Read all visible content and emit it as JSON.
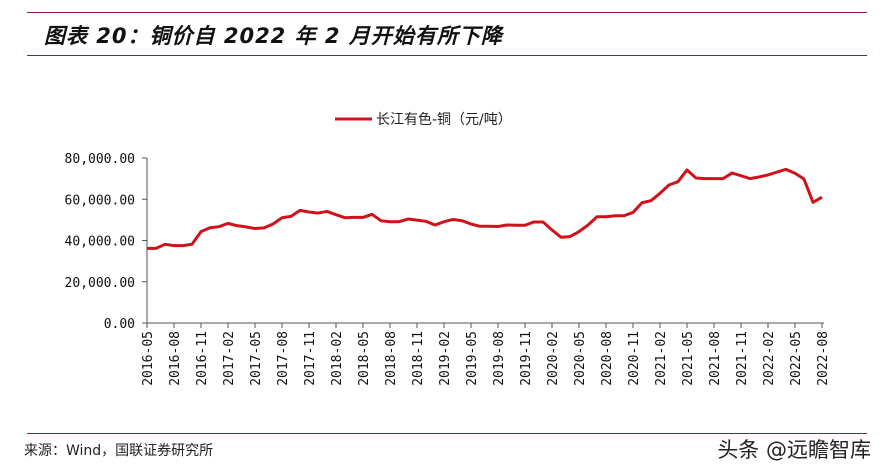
{
  "title": "图表 20：铜价自 2022 年 2 月开始有所下降",
  "source": "来源：Wind，国联证券研究所",
  "watermark": "头条 @远瞻智库",
  "chart_data": {
    "type": "line",
    "title": "",
    "xlabel": "",
    "ylabel": "",
    "ylim": [
      0,
      80000
    ],
    "yticks": [
      "0.00",
      "20,000.00",
      "40,000.00",
      "60,000.00",
      "80,000.00"
    ],
    "ytick_values": [
      0,
      20000,
      40000,
      60000,
      80000
    ],
    "grid": false,
    "legend_position": "top-right",
    "xtick_labels": [
      "2016-05",
      "2016-08",
      "2016-11",
      "2017-02",
      "2017-05",
      "2017-08",
      "2017-11",
      "2018-02",
      "2018-05",
      "2018-08",
      "2018-11",
      "2019-02",
      "2019-05",
      "2019-08",
      "2019-11",
      "2020-02",
      "2020-05",
      "2020-08",
      "2020-11",
      "2021-02",
      "2021-05",
      "2021-08",
      "2021-11",
      "2022-02",
      "2022-05",
      "2022-08"
    ],
    "x_start": "2016-05",
    "series": [
      {
        "name": "长江有色-铜（元/吨）",
        "color": "#d0121b",
        "values": [
          36200,
          36200,
          38150,
          37500,
          37500,
          38200,
          44300,
          46200,
          46700,
          48300,
          47200,
          46600,
          45800,
          46100,
          48000,
          51050,
          51700,
          54600,
          53800,
          53300,
          54100,
          52500,
          51050,
          51200,
          51200,
          52700,
          49600,
          49100,
          49100,
          50400,
          49900,
          49300,
          47500,
          49100,
          50200,
          49600,
          48000,
          46900,
          46900,
          46800,
          47500,
          47400,
          47400,
          49000,
          49000,
          45100,
          41600,
          41900,
          44300,
          47500,
          51500,
          51500,
          52000,
          52000,
          53600,
          58300,
          59300,
          62900,
          66900,
          68500,
          74200,
          70300,
          70000,
          70000,
          70000,
          72700,
          71400,
          70000,
          70800,
          71800,
          73200,
          74500,
          72600,
          69800,
          58500,
          61000
        ]
      }
    ]
  }
}
